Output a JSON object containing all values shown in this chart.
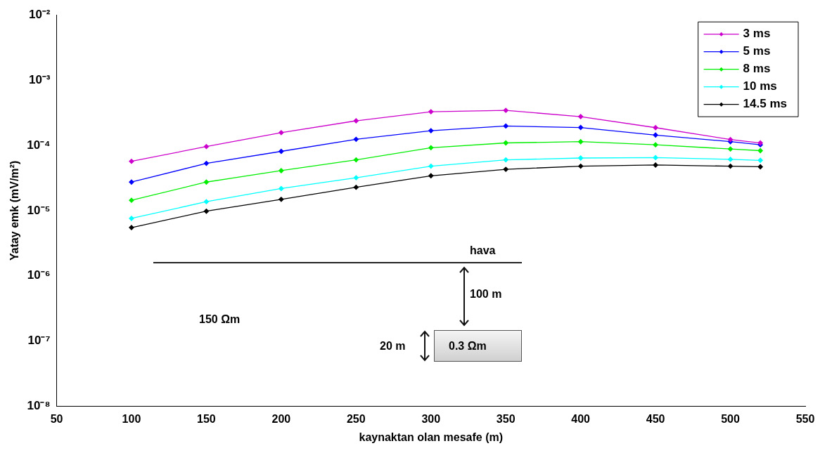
{
  "chart_data": {
    "type": "line",
    "xlabel": "kaynaktan olan mesafe (m)",
    "ylabel": "Yatay emk (mV/m²)",
    "x": [
      100,
      150,
      200,
      250,
      300,
      350,
      400,
      450,
      500,
      520
    ],
    "series": [
      {
        "name": "3 ms",
        "color": "#cc00cc",
        "values": [
          5.7e-05,
          9.6e-05,
          0.000157,
          0.000238,
          0.000328,
          0.000344,
          0.000276,
          0.000187,
          0.000123,
          0.000109
        ]
      },
      {
        "name": "5 ms",
        "color": "#0000ff",
        "values": [
          2.74e-05,
          5.3e-05,
          8.1e-05,
          0.000124,
          0.000168,
          0.000198,
          0.000188,
          0.000144,
          0.000114,
          0.000102
        ]
      },
      {
        "name": "8 ms",
        "color": "#00ee00",
        "values": [
          1.44e-05,
          2.74e-05,
          4.1e-05,
          6e-05,
          9.2e-05,
          0.000109,
          0.000114,
          0.000102,
          8.8e-05,
          8.3e-05
        ]
      },
      {
        "name": "10 ms",
        "color": "#00ffff",
        "values": [
          7.6e-06,
          1.37e-05,
          2.18e-05,
          3.19e-05,
          4.8e-05,
          6e-05,
          6.4e-05,
          6.5e-05,
          6.1e-05,
          5.9e-05
        ]
      },
      {
        "name": "14.5 ms",
        "color": "#000000",
        "values": [
          5.5e-06,
          9.8e-06,
          1.49e-05,
          2.28e-05,
          3.42e-05,
          4.3e-05,
          4.8e-05,
          5e-05,
          4.8e-05,
          4.7e-05
        ]
      }
    ],
    "xlim": [
      50,
      550
    ],
    "xticks": [
      50,
      100,
      150,
      200,
      250,
      300,
      350,
      400,
      450,
      500,
      550
    ],
    "ylim": [
      1e-08,
      0.01
    ],
    "yticks": [
      {
        "value": 1e-08,
        "label": "10⁻⁸"
      },
      {
        "value": 1e-07,
        "label": "10⁻⁷"
      },
      {
        "value": 1e-06,
        "label": "10⁻⁶"
      },
      {
        "value": 1e-05,
        "label": "10⁻⁵"
      },
      {
        "value": 0.0001,
        "label": "10⁻⁴"
      },
      {
        "value": 0.001,
        "label": "10⁻³"
      },
      {
        "value": 0.01,
        "label": "10⁻²"
      }
    ],
    "log": "y",
    "grid": false,
    "legend": "top right",
    "marker": "diamond",
    "line_style": "solid",
    "annotations": [
      "hava",
      "100 m",
      "150 Ωm",
      "20 m",
      "0.3 Ωm"
    ]
  }
}
